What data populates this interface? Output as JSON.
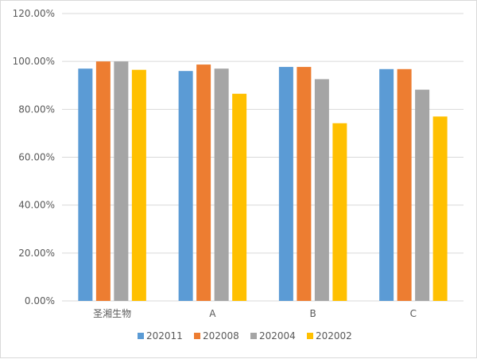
{
  "chart_data": {
    "type": "bar",
    "title": "",
    "xlabel": "",
    "ylabel": "",
    "categories": [
      "圣湘生物",
      "A",
      "B",
      "C"
    ],
    "series": [
      {
        "name": "202011",
        "color": "#5b9bd5",
        "values": [
          97.0,
          96.0,
          97.7,
          96.8
        ]
      },
      {
        "name": "202008",
        "color": "#ed7d31",
        "values": [
          100.0,
          98.7,
          97.7,
          96.8
        ]
      },
      {
        "name": "202004",
        "color": "#a5a5a5",
        "values": [
          100.0,
          97.0,
          92.6,
          88.2
        ]
      },
      {
        "name": "202002",
        "color": "#ffc000",
        "values": [
          96.5,
          86.5,
          74.2,
          77.0
        ]
      }
    ],
    "ylim": [
      0,
      120
    ],
    "yticks": [
      "0.00%",
      "20.00%",
      "40.00%",
      "60.00%",
      "80.00%",
      "100.00%",
      "120.00%"
    ],
    "grid": true,
    "legend": "bottom"
  }
}
